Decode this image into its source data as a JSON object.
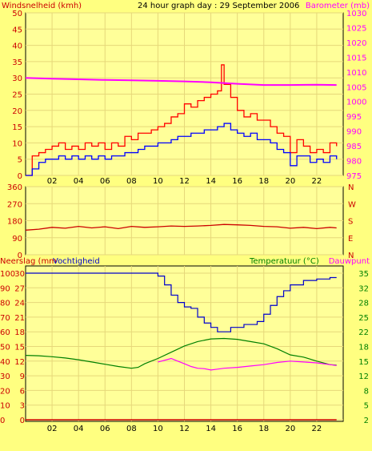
{
  "colors": {
    "background": "#ffff80",
    "plot_area": "#ffff99",
    "grid": "#e6d77a",
    "wind_gust": "#ff0000",
    "wind_avg": "#0000ff",
    "barometer": "#ff00ff",
    "wind_dir": "#cc0000",
    "rain": "#cc0000",
    "humidity": "#0000cc",
    "temperature": "#008000",
    "dewpoint": "#ff00ff",
    "label_red": "#cc0000",
    "label_magenta": "#ff00ff",
    "label_green": "#008000",
    "label_blue": "#0000cc"
  },
  "chart_data": [
    {
      "type": "line",
      "title": "24 hour graph day : 29 September 2006",
      "ylabel": "Windsnelheid (kmh)",
      "ylabel_right": "Barometer (mb)",
      "x_ticks": [
        "02",
        "04",
        "06",
        "08",
        "10",
        "12",
        "14",
        "16",
        "18",
        "20",
        "22"
      ],
      "x_tick_hours": [
        2,
        4,
        6,
        8,
        10,
        12,
        14,
        16,
        18,
        20,
        22
      ],
      "xlim": [
        0,
        24
      ],
      "ylim": [
        0,
        50
      ],
      "yticks": [
        0,
        5,
        10,
        15,
        20,
        25,
        30,
        35,
        40,
        45,
        50
      ],
      "ylim_right": [
        975,
        1030
      ],
      "yticks_right": [
        975,
        980,
        985,
        990,
        995,
        1000,
        1005,
        1010,
        1015,
        1020,
        1025,
        1030
      ],
      "series": [
        {
          "key": "gust",
          "hours": [
            0,
            0.5,
            1,
            1.5,
            2,
            2.5,
            3,
            3.5,
            4,
            4.5,
            5,
            5.5,
            6,
            6.5,
            7,
            7.5,
            8,
            8.5,
            9,
            9.5,
            10,
            10.5,
            11,
            11.5,
            12,
            12.5,
            13,
            13.5,
            14,
            14.5,
            14.8,
            15,
            15.5,
            16,
            16.5,
            17,
            17.5,
            18,
            18.5,
            19,
            19.5,
            20,
            20.5,
            21,
            21.5,
            22,
            22.5,
            23,
            23.5
          ],
          "values": [
            0,
            6,
            7,
            8,
            9,
            10,
            8,
            9,
            8,
            10,
            9,
            10,
            8,
            10,
            9,
            12,
            11,
            13,
            13,
            14,
            15,
            16,
            18,
            19,
            22,
            21,
            23,
            24,
            25,
            26,
            34,
            28,
            24,
            20,
            18,
            19,
            17,
            17,
            15,
            13,
            12,
            7,
            11,
            9,
            7,
            8,
            7,
            10,
            9
          ]
        },
        {
          "key": "avg",
          "hours": [
            0,
            0.5,
            1,
            1.5,
            2,
            2.5,
            3,
            3.5,
            4,
            4.5,
            5,
            5.5,
            6,
            6.5,
            7,
            7.5,
            8,
            8.5,
            9,
            9.5,
            10,
            10.5,
            11,
            11.5,
            12,
            12.5,
            13,
            13.5,
            14,
            14.5,
            15,
            15.5,
            16,
            16.5,
            17,
            17.5,
            18,
            18.5,
            19,
            19.5,
            20,
            20.5,
            21,
            21.5,
            22,
            22.5,
            23,
            23.5
          ],
          "values": [
            0,
            2,
            4,
            5,
            5,
            6,
            5,
            6,
            5,
            6,
            5,
            6,
            5,
            6,
            6,
            7,
            7,
            8,
            9,
            9,
            10,
            10,
            11,
            12,
            12,
            13,
            13,
            14,
            14,
            15,
            16,
            14,
            13,
            12,
            13,
            11,
            11,
            10,
            8,
            7,
            3,
            6,
            6,
            4,
            5,
            4,
            6,
            5
          ]
        },
        {
          "key": "barometer",
          "axis": "right",
          "hours": [
            0,
            2,
            4,
            6,
            8,
            10,
            12,
            14,
            16,
            18,
            20,
            22,
            23.5
          ],
          "values": [
            1008,
            1007.7,
            1007.5,
            1007.3,
            1007.2,
            1007,
            1006.8,
            1006.5,
            1006,
            1005.6,
            1005.6,
            1005.7,
            1005.6
          ]
        }
      ]
    },
    {
      "type": "line",
      "ylim": [
        0,
        360
      ],
      "yticks": [
        0,
        90,
        180,
        270,
        360
      ],
      "compass": [
        "N",
        "W",
        "S",
        "E",
        "N"
      ],
      "series": [
        {
          "key": "direction",
          "hours": [
            0,
            1,
            2,
            3,
            4,
            5,
            6,
            7,
            8,
            9,
            10,
            11,
            12,
            13,
            14,
            15,
            16,
            17,
            18,
            19,
            20,
            21,
            22,
            23,
            23.5
          ],
          "values": [
            130,
            135,
            145,
            140,
            150,
            142,
            148,
            138,
            150,
            145,
            148,
            152,
            150,
            152,
            155,
            160,
            158,
            155,
            150,
            148,
            140,
            145,
            138,
            145,
            142
          ]
        }
      ]
    },
    {
      "type": "line",
      "ylabel": "Neerslag (mm",
      "ylabel2": "Vochtigheid",
      "ylabel_right": "Temperatuur (°C)",
      "ylabel_right2": "Dauwpunt",
      "x_ticks": [
        "02",
        "04",
        "06",
        "08",
        "10",
        "12",
        "14",
        "16",
        "18",
        "20",
        "22"
      ],
      "x_tick_hours": [
        2,
        4,
        6,
        8,
        10,
        12,
        14,
        16,
        18,
        20,
        22
      ],
      "xlim": [
        0,
        24
      ],
      "ylim": [
        0,
        100
      ],
      "yticks": [
        0,
        10,
        20,
        30,
        40,
        50,
        60,
        70,
        80,
        90,
        100
      ],
      "yticks_rain": [
        0,
        3,
        6,
        9,
        12,
        15,
        18,
        21,
        24,
        27,
        30
      ],
      "ylim_right": [
        2,
        35
      ],
      "yticks_right": [
        2,
        5,
        8,
        12,
        15,
        18,
        22,
        25,
        28,
        32,
        35
      ],
      "series": [
        {
          "key": "rain",
          "hours": [
            0,
            23.5
          ],
          "values": [
            0,
            0
          ]
        },
        {
          "key": "humidity",
          "hours": [
            0,
            9.5,
            10,
            10.5,
            11,
            11.5,
            12,
            12.5,
            13,
            13.5,
            14,
            14.5,
            15,
            15.5,
            16,
            16.5,
            17,
            17.5,
            18,
            18.5,
            19,
            19.5,
            20,
            21,
            22,
            23,
            23.5
          ],
          "values": [
            100,
            100,
            98,
            92,
            85,
            80,
            77,
            76,
            70,
            66,
            63,
            60,
            60,
            63,
            63,
            65,
            65,
            67,
            72,
            78,
            84,
            88,
            92,
            95,
            96,
            97,
            97
          ]
        },
        {
          "key": "temperature",
          "hours": [
            0,
            1,
            2,
            3,
            4,
            5,
            6,
            7,
            8,
            8.5,
            9,
            10,
            11,
            12,
            13,
            14,
            15,
            16,
            17,
            18,
            19,
            20,
            21,
            22,
            23,
            23.5
          ],
          "values": [
            16.5,
            16.4,
            16.2,
            15.9,
            15.5,
            15.0,
            14.5,
            14.0,
            13.6,
            13.8,
            14.6,
            15.8,
            17.2,
            18.6,
            19.6,
            20.2,
            20.3,
            20.1,
            19.6,
            19.1,
            18.0,
            16.6,
            16.1,
            15.2,
            14.4,
            14.3
          ]
        },
        {
          "key": "dewpoint",
          "hours": [
            10,
            11,
            11.5,
            12,
            12.5,
            13,
            13.5,
            14,
            14.5,
            15,
            16,
            17,
            18,
            19,
            20,
            21,
            22,
            23,
            23.5
          ],
          "values": [
            15.0,
            15.8,
            15.2,
            14.6,
            14.0,
            13.6,
            13.5,
            13.2,
            13.4,
            13.6,
            13.8,
            14.1,
            14.4,
            14.9,
            15.2,
            15.0,
            14.8,
            14.4,
            14.2
          ]
        }
      ]
    }
  ]
}
